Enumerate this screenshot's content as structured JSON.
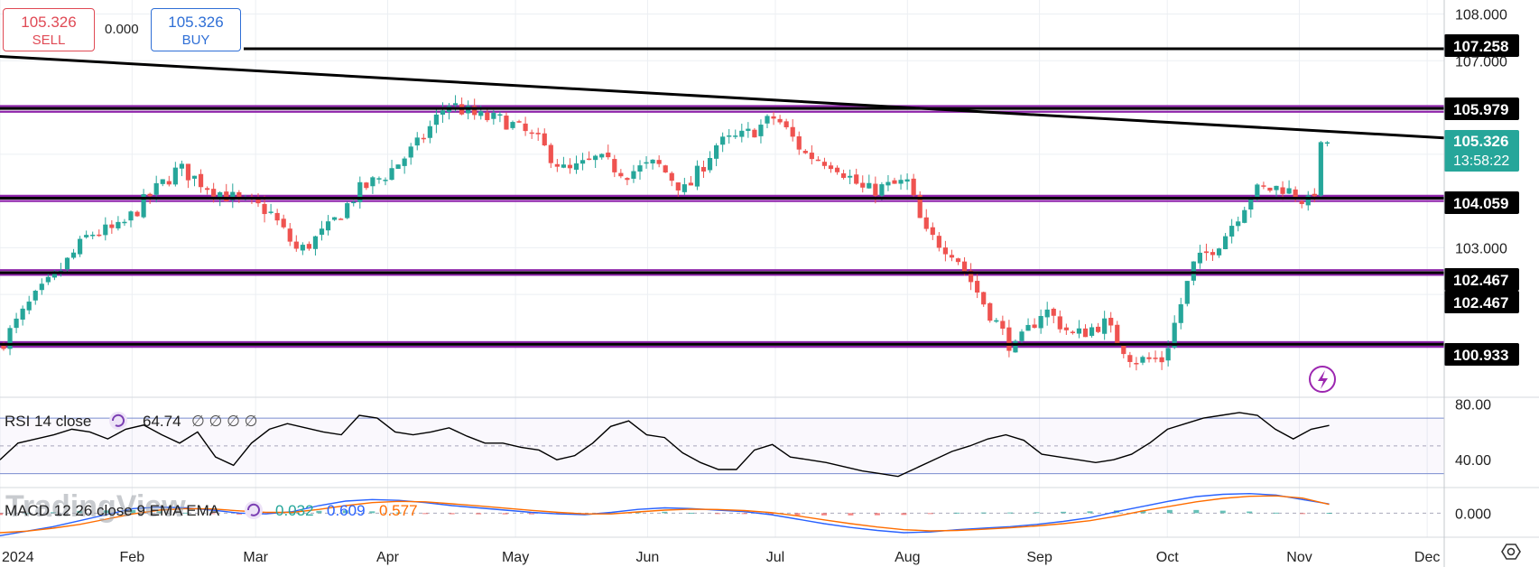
{
  "trade": {
    "sell_price": "105.326",
    "sell_label": "SELL",
    "buy_price": "105.326",
    "buy_label": "BUY",
    "spread": "0.000"
  },
  "watermark": "TradingView",
  "countdown": "13:58:22",
  "colors": {
    "up": "#26a69a",
    "down": "#ef5350",
    "level_line": "#000000",
    "zone": "#8e24aa",
    "rsi_line": "#000000",
    "macd_line": "#2962ff",
    "signal_line": "#ff6d00",
    "current_price_bg": "#26a69a"
  },
  "indicators": {
    "rsi": {
      "label": "RSI 14 close",
      "value": "64.74",
      "extra": "∅ ∅ ∅ ∅"
    },
    "macd": {
      "label": "MACD 12 26 close 9 EMA EMA",
      "v1": "0.032",
      "v2": "0.609",
      "v3": "0.577"
    }
  },
  "chart_data": [
    {
      "type": "candlestick",
      "title": "",
      "x_ticks": [
        "2024",
        "Feb",
        "Mar",
        "Apr",
        "May",
        "Jun",
        "Jul",
        "Aug",
        "Sep",
        "Oct",
        "Nov",
        "Dec"
      ],
      "y_ticks": [
        "108.000",
        "107.000",
        "103.000"
      ],
      "ylim": [
        99.8,
        108.3
      ],
      "horizontal_levels": [
        "107.258",
        "105.979",
        "104.059",
        "102.467",
        "102.467",
        "100.933"
      ],
      "current_price": "105.326",
      "trendline": {
        "start": [
          "2024-01-01",
          107.1
        ],
        "end": [
          "2024-12-04",
          105.35
        ]
      },
      "close_path": [
        [
          "2024-01-01",
          100.9
        ],
        [
          "2024-01-08",
          101.8
        ],
        [
          "2024-01-15",
          102.5
        ],
        [
          "2024-01-22",
          103.3
        ],
        [
          "2024-01-29",
          103.4
        ],
        [
          "2024-02-05",
          104.1
        ],
        [
          "2024-02-12",
          104.7
        ],
        [
          "2024-02-19",
          104.3
        ],
        [
          "2024-02-26",
          104.0
        ],
        [
          "2024-03-04",
          103.8
        ],
        [
          "2024-03-11",
          102.9
        ],
        [
          "2024-03-18",
          103.4
        ],
        [
          "2024-03-25",
          104.2
        ],
        [
          "2024-04-01",
          104.6
        ],
        [
          "2024-04-08",
          105.2
        ],
        [
          "2024-04-15",
          106.1
        ],
        [
          "2024-04-22",
          105.8
        ],
        [
          "2024-04-29",
          105.7
        ],
        [
          "2024-05-06",
          105.3
        ],
        [
          "2024-05-13",
          104.6
        ],
        [
          "2024-05-20",
          104.9
        ],
        [
          "2024-05-27",
          104.6
        ],
        [
          "2024-06-03",
          104.8
        ],
        [
          "2024-06-10",
          104.2
        ],
        [
          "2024-06-17",
          105.2
        ],
        [
          "2024-06-24",
          105.4
        ],
        [
          "2024-07-01",
          105.8
        ],
        [
          "2024-07-08",
          105.0
        ],
        [
          "2024-07-15",
          104.8
        ],
        [
          "2024-07-22",
          104.2
        ],
        [
          "2024-08-01",
          104.4
        ],
        [
          "2024-08-05",
          103.3
        ],
        [
          "2024-08-12",
          102.9
        ],
        [
          "2024-08-19",
          101.8
        ],
        [
          "2024-08-26",
          100.8
        ],
        [
          "2024-09-02",
          101.7
        ],
        [
          "2024-09-09",
          101.1
        ],
        [
          "2024-09-16",
          101.4
        ],
        [
          "2024-09-23",
          100.6
        ],
        [
          "2024-09-30",
          100.6
        ],
        [
          "2024-10-07",
          102.6
        ],
        [
          "2024-10-14",
          103.2
        ],
        [
          "2024-10-21",
          104.2
        ],
        [
          "2024-10-28",
          104.3
        ],
        [
          "2024-11-04",
          103.9
        ],
        [
          "2024-11-06",
          105.1
        ],
        [
          "2024-11-08",
          105.326
        ]
      ]
    },
    {
      "type": "line",
      "name": "RSI 14 close",
      "y_ticks": [
        "80.00",
        "40.00"
      ],
      "ylim": [
        20,
        85
      ],
      "bands": [
        30,
        70
      ],
      "values": [
        40,
        52,
        55,
        58,
        62,
        60,
        55,
        62,
        65,
        58,
        52,
        60,
        42,
        36,
        52,
        62,
        66,
        63,
        60,
        58,
        72,
        70,
        60,
        58,
        60,
        63,
        57,
        52,
        52,
        49,
        47,
        40,
        43,
        52,
        64,
        68,
        58,
        56,
        45,
        38,
        33,
        33,
        47,
        51,
        42,
        40,
        38,
        35,
        32,
        30,
        28,
        34,
        40,
        46,
        50,
        55,
        58,
        54,
        44,
        42,
        40,
        38,
        40,
        44,
        52,
        62,
        66,
        70,
        72,
        74,
        72,
        62,
        55,
        62,
        64.74
      ]
    },
    {
      "type": "line",
      "name": "MACD 12 26 close 9 EMA EMA",
      "y_ticks": [
        "0.000"
      ],
      "ylim": [
        -1.6,
        1.7
      ],
      "macd": [
        -1.5,
        -1.2,
        -0.9,
        -0.5,
        -0.1,
        0.3,
        0.4,
        0.35,
        0.2,
        0.0,
        -0.05,
        0.1,
        0.5,
        0.8,
        0.9,
        0.85,
        0.7,
        0.5,
        0.35,
        0.2,
        0.05,
        -0.05,
        -0.1,
        0.05,
        0.25,
        0.35,
        0.3,
        0.2,
        0.1,
        -0.1,
        -0.4,
        -0.7,
        -0.95,
        -1.15,
        -1.3,
        -1.25,
        -1.1,
        -1.0,
        -0.9,
        -0.75,
        -0.55,
        -0.3,
        0.1,
        0.45,
        0.8,
        1.1,
        1.25,
        1.3,
        1.2,
        0.9,
        0.609
      ],
      "signal": [
        -1.3,
        -1.2,
        -1.0,
        -0.75,
        -0.4,
        -0.05,
        0.2,
        0.3,
        0.28,
        0.15,
        0.05,
        0.05,
        0.25,
        0.5,
        0.7,
        0.78,
        0.75,
        0.62,
        0.48,
        0.33,
        0.18,
        0.05,
        -0.05,
        -0.05,
        0.08,
        0.2,
        0.26,
        0.24,
        0.17,
        0.04,
        -0.18,
        -0.45,
        -0.7,
        -0.92,
        -1.1,
        -1.18,
        -1.15,
        -1.07,
        -0.97,
        -0.85,
        -0.7,
        -0.5,
        -0.2,
        0.15,
        0.45,
        0.75,
        0.98,
        1.12,
        1.15,
        1.0,
        0.577
      ]
    }
  ]
}
